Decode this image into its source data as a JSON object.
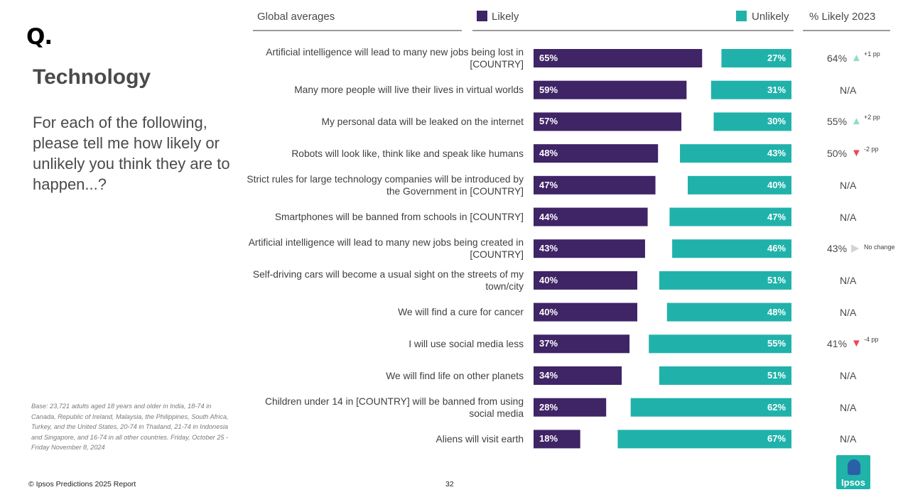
{
  "brand": {
    "logo_mark": "Q.",
    "footer_logo": "Ipsos"
  },
  "title": "Technology",
  "question": "For each of the following, please tell me how likely or unlikely you think they are to happen...?",
  "base_note": "Base: 23,721 adults aged 18 years and older in India, 18-74 in Canada, Republic of Ireland, Malaysia, the Philippines, South Africa, Turkey, and the United States, 20-74 in Thailand, 21-74 in Indonesia and Singapore, and 16-74 in all other countries. Friday, October 25 - Friday November 8, 2024",
  "footer": {
    "copyright": "© Ipsos Predictions 2025 Report",
    "page_number": "32"
  },
  "colors": {
    "likely": "#3f2466",
    "unlikely": "#20b2aa",
    "up": "#8fdcc9",
    "down": "#f0475a",
    "neutral": "#d3d3d3"
  },
  "chart_data": {
    "type": "bar",
    "orientation": "horizontal-diverging",
    "title": "Global averages",
    "series": [
      {
        "name": "Likely",
        "values": [
          65,
          59,
          57,
          48,
          47,
          44,
          43,
          40,
          40,
          37,
          34,
          28,
          18
        ]
      },
      {
        "name": "Unlikely",
        "values": [
          27,
          31,
          30,
          43,
          40,
          47,
          46,
          51,
          48,
          55,
          51,
          62,
          67
        ]
      }
    ],
    "trend_header": "% Likely 2023",
    "categories": [
      "Artificial intelligence will lead to many new jobs being lost in [COUNTRY]",
      "Many more people will live their lives in virtual worlds",
      "My personal data will be leaked on the internet",
      "Robots will look like, think like and speak like humans",
      "Strict rules for large technology companies will be introduced by the Government in [COUNTRY]",
      "Smartphones will be banned from schools in [COUNTRY]",
      "Artificial intelligence will lead to many new jobs being created in [COUNTRY]",
      "Self-driving cars will become a usual sight on the streets of my town/city",
      "We will find a cure for cancer",
      "I will use social media less",
      "We will find life on other planets",
      "Children under 14 in [COUNTRY] will be banned from using social media",
      "Aliens will visit earth"
    ],
    "likely_2023": [
      {
        "value": "64%",
        "change": "+1 pp",
        "direction": "up"
      },
      {
        "value": "N/A"
      },
      {
        "value": "55%",
        "change": "+2 pp",
        "direction": "up"
      },
      {
        "value": "50%",
        "change": "-2 pp",
        "direction": "down"
      },
      {
        "value": "N/A"
      },
      {
        "value": "N/A"
      },
      {
        "value": "43%",
        "change": "No change",
        "direction": "none"
      },
      {
        "value": "N/A"
      },
      {
        "value": "N/A"
      },
      {
        "value": "41%",
        "change": "-4 pp",
        "direction": "down"
      },
      {
        "value": "N/A"
      },
      {
        "value": "N/A"
      },
      {
        "value": "N/A"
      }
    ]
  }
}
